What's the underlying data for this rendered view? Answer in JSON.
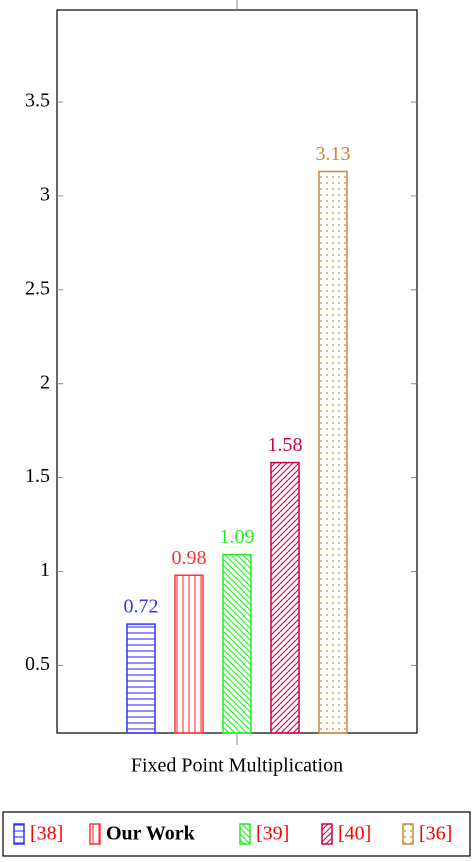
{
  "chart_data": {
    "type": "bar",
    "categories": [
      "Fixed Point Multiplication"
    ],
    "series": [
      {
        "name": "[38]",
        "color": "#3333ff",
        "pattern": "horizontal",
        "values": [
          0.72
        ]
      },
      {
        "name": "Our Work",
        "color": "#ff3333",
        "pattern": "vertical",
        "values": [
          0.98
        ]
      },
      {
        "name": "[39]",
        "color": "#22ee22",
        "pattern": "north-west",
        "values": [
          1.09
        ]
      },
      {
        "name": "[40]",
        "color": "#cc0044",
        "pattern": "north-east",
        "values": [
          1.58
        ]
      },
      {
        "name": "[36]",
        "color": "#cc8833",
        "pattern": "dots",
        "values": [
          3.13
        ]
      }
    ],
    "ylim": [
      0.14,
      3.99
    ],
    "yticks": [
      0.5,
      1,
      1.5,
      2,
      2.5,
      3,
      3.5
    ],
    "grid": false,
    "legend": "bottom"
  }
}
